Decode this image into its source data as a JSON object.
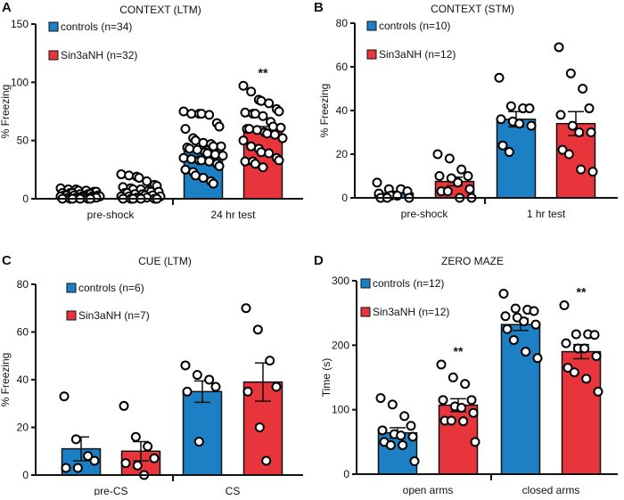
{
  "colors": {
    "controls": "#1d7fc4",
    "sin3anh": "#e8353b",
    "points": "#000000"
  },
  "chart_data": [
    {
      "panel": "A",
      "type": "bar",
      "title": "CONTEXT (LTM)",
      "ylabel": "% Freezing",
      "ylim": [
        0,
        150
      ],
      "yticks": [
        0,
        50,
        100,
        150
      ],
      "groups": [
        "pre-shock",
        "24 hr test"
      ],
      "legend": [
        "controls (n=34)",
        "Sin3aNH (n=32)"
      ],
      "legend_position": "top-left",
      "bars": [
        {
          "group": "pre-shock",
          "series": "controls",
          "mean": 3,
          "sem": 0.5,
          "sig": "",
          "points": [
            9,
            8,
            8,
            7,
            7,
            6,
            6,
            5,
            5,
            5,
            4,
            4,
            4,
            3,
            3,
            3,
            3,
            2,
            2,
            2,
            2,
            2,
            1,
            1,
            1,
            1,
            1,
            1,
            0,
            0,
            0,
            0,
            0,
            0
          ]
        },
        {
          "group": "pre-shock",
          "series": "Sin3aNH",
          "mean": 6,
          "sem": 1,
          "sig": "",
          "points": [
            21,
            20,
            19,
            18,
            15,
            12,
            11,
            10,
            9,
            8,
            8,
            7,
            6,
            6,
            5,
            5,
            4,
            4,
            3,
            3,
            2,
            2,
            2,
            1,
            1,
            1,
            0,
            0,
            0,
            0,
            0,
            0
          ]
        },
        {
          "group": "24 hr test",
          "series": "controls",
          "mean": 42,
          "sem": 3,
          "sig": "",
          "points": [
            75,
            73,
            73,
            73,
            72,
            65,
            62,
            60,
            52,
            50,
            48,
            47,
            45,
            45,
            44,
            43,
            42,
            40,
            39,
            38,
            37,
            35,
            34,
            33,
            33,
            32,
            30,
            28,
            25,
            23,
            20,
            18,
            15,
            13
          ]
        },
        {
          "group": "24 hr test",
          "series": "Sin3aNH",
          "mean": 59,
          "sem": 3,
          "sig": "**",
          "points": [
            97,
            92,
            85,
            84,
            82,
            77,
            75,
            74,
            73,
            73,
            71,
            66,
            62,
            61,
            60,
            60,
            59,
            57,
            56,
            55,
            52,
            50,
            45,
            43,
            40,
            39,
            35,
            33,
            32,
            32,
            30,
            27
          ]
        }
      ]
    },
    {
      "panel": "B",
      "type": "bar",
      "title": "CONTEXT (STM)",
      "ylabel": "% Freezing",
      "ylim": [
        0,
        80
      ],
      "yticks": [
        0,
        20,
        40,
        60,
        80
      ],
      "groups": [
        "pre-shock",
        "1 hr test"
      ],
      "legend": [
        "controls (n=10)",
        "Sin3aNH (n=12)"
      ],
      "legend_position": "top-left",
      "bars": [
        {
          "group": "pre-shock",
          "series": "controls",
          "mean": 2.2,
          "sem": 0.8,
          "sig": "",
          "points": [
            7,
            4,
            4,
            3,
            2,
            1,
            1,
            0,
            0,
            0
          ]
        },
        {
          "group": "pre-shock",
          "series": "Sin3aNH",
          "mean": 7.5,
          "sem": 2,
          "sig": "",
          "points": [
            20,
            18,
            13,
            10,
            10,
            9,
            7,
            4,
            3,
            3,
            0,
            0
          ]
        },
        {
          "group": "1 hr test",
          "series": "controls",
          "mean": 36,
          "sem": 3.5,
          "sig": "",
          "points": [
            55,
            42,
            41,
            41,
            36,
            35,
            34,
            33,
            24,
            21
          ]
        },
        {
          "group": "1 hr test",
          "series": "Sin3aNH",
          "mean": 34,
          "sem": 5.5,
          "sig": "",
          "points": [
            69,
            57,
            50,
            41,
            38,
            33,
            30,
            30,
            22,
            20,
            13,
            12
          ]
        }
      ]
    },
    {
      "panel": "C",
      "type": "bar",
      "title": "CUE (LTM)",
      "ylabel": "% Freezing",
      "ylim": [
        0,
        80
      ],
      "yticks": [
        0,
        20,
        40,
        60,
        80
      ],
      "groups": [
        "pre-CS",
        "CS"
      ],
      "legend": [
        "controls (n=6)",
        "Sin3aNH (n=7)"
      ],
      "legend_position": "top-left",
      "bars": [
        {
          "group": "pre-CS",
          "series": "controls",
          "mean": 11,
          "sem": 5,
          "sig": "",
          "points": [
            33,
            15,
            8,
            6,
            3,
            3
          ]
        },
        {
          "group": "pre-CS",
          "series": "Sin3aNH",
          "mean": 10,
          "sem": 4,
          "sig": "",
          "points": [
            29,
            16,
            12,
            7,
            5,
            4,
            0
          ]
        },
        {
          "group": "CS",
          "series": "controls",
          "mean": 35,
          "sem": 4.5,
          "sig": "",
          "points": [
            46,
            42,
            40,
            37,
            35,
            14
          ]
        },
        {
          "group": "CS",
          "series": "Sin3aNH",
          "mean": 39,
          "sem": 8,
          "sig": "",
          "points": [
            70,
            61,
            48,
            37,
            35,
            20,
            6
          ]
        }
      ]
    },
    {
      "panel": "D",
      "type": "bar",
      "title": "ZERO MAZE",
      "ylabel": "Time (s)",
      "ylim": [
        0,
        300
      ],
      "yticks": [
        0,
        100,
        200,
        300
      ],
      "groups": [
        "open arms",
        "closed arms"
      ],
      "legend": [
        "controls (n=12)",
        "Sin3aNH (n=12)"
      ],
      "legend_position": "top-left",
      "bars": [
        {
          "group": "open arms",
          "series": "controls",
          "mean": 64,
          "sem": 8,
          "sig": "",
          "points": [
            118,
            108,
            90,
            75,
            68,
            62,
            60,
            58,
            50,
            45,
            45,
            20
          ]
        },
        {
          "group": "open arms",
          "series": "Sin3aNH",
          "mean": 107,
          "sem": 10,
          "sig": "**",
          "points": [
            170,
            150,
            140,
            115,
            115,
            105,
            103,
            95,
            83,
            83,
            82,
            50
          ]
        },
        {
          "group": "closed arms",
          "series": "controls",
          "mean": 232,
          "sem": 9,
          "sig": "",
          "points": [
            280,
            257,
            255,
            253,
            245,
            243,
            237,
            232,
            225,
            208,
            190,
            180
          ]
        },
        {
          "group": "closed arms",
          "series": "Sin3aNH",
          "mean": 190,
          "sem": 11,
          "sig": "**",
          "points": [
            262,
            217,
            217,
            216,
            203,
            195,
            195,
            183,
            165,
            158,
            148,
            128
          ]
        }
      ]
    }
  ]
}
